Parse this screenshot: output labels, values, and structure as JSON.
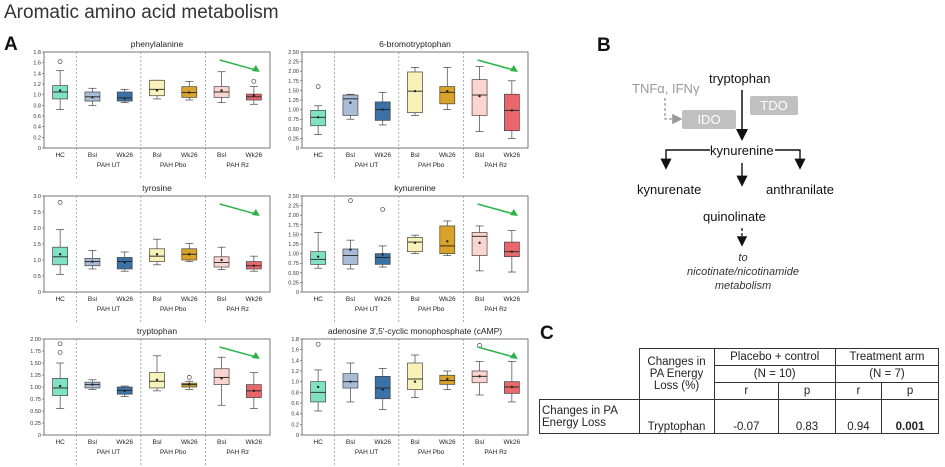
{
  "title": "Aromatic amino acid metabolism",
  "panels": {
    "a": "A",
    "b": "B",
    "c": "C"
  },
  "groups": [
    "PAH UT",
    "PAH Pbo",
    "PAH Rz"
  ],
  "chart_data": [
    {
      "type": "box",
      "title": "phenylalanine",
      "ylim": [
        0,
        1.8
      ],
      "yticks": [
        "0",
        "0.2",
        "0.4",
        "0.6",
        "0.8",
        "1.0",
        "1.2",
        "1.4",
        "1.6",
        "1.8"
      ],
      "categories": [
        "HC",
        "Bsl",
        "Wk26",
        "Bsl",
        "Wk26",
        "Bsl",
        "Wk26"
      ],
      "boxes": [
        {
          "min": 0.72,
          "q1": 0.92,
          "median": 1.05,
          "q3": 1.17,
          "max": 1.45,
          "mean": 1.08,
          "outliers": [
            1.62
          ]
        },
        {
          "min": 0.8,
          "q1": 0.88,
          "median": 0.96,
          "q3": 1.05,
          "max": 1.12,
          "mean": 0.95,
          "outliers": []
        },
        {
          "min": 0.85,
          "q1": 0.88,
          "median": 0.94,
          "q3": 1.05,
          "max": 1.1,
          "mean": 0.93,
          "outliers": []
        },
        {
          "min": 0.92,
          "q1": 0.98,
          "median": 1.1,
          "q3": 1.27,
          "max": 1.27,
          "mean": 1.08,
          "outliers": []
        },
        {
          "min": 0.9,
          "q1": 0.95,
          "median": 1.04,
          "q3": 1.15,
          "max": 1.25,
          "mean": 1.04,
          "outliers": []
        },
        {
          "min": 0.85,
          "q1": 0.95,
          "median": 1.05,
          "q3": 1.15,
          "max": 1.43,
          "mean": 1.08,
          "outliers": []
        },
        {
          "min": 0.82,
          "q1": 0.9,
          "median": 0.96,
          "q3": 1.01,
          "max": 1.15,
          "mean": 0.98,
          "outliers": [
            1.25
          ]
        }
      ]
    },
    {
      "type": "box",
      "title": "6-bromotryptophan",
      "ylim": [
        0,
        2.5
      ],
      "yticks": [
        "0",
        "0.25",
        "0.50",
        "0.75",
        "1.00",
        "1.25",
        "1.50",
        "1.75",
        "2.00",
        "2.25",
        "2.50"
      ],
      "categories": [
        "HC",
        "Bsl",
        "Wk26",
        "Bsl",
        "Wk26",
        "Bsl",
        "Wk26"
      ],
      "boxes": [
        {
          "min": 0.35,
          "q1": 0.58,
          "median": 0.8,
          "q3": 0.98,
          "max": 1.1,
          "mean": 0.8,
          "outliers": [
            1.6
          ]
        },
        {
          "min": 0.75,
          "q1": 0.85,
          "median": 1.28,
          "q3": 1.38,
          "max": 1.4,
          "mean": 1.18,
          "outliers": []
        },
        {
          "min": 0.6,
          "q1": 0.72,
          "median": 1.0,
          "q3": 1.2,
          "max": 1.45,
          "mean": 1.0,
          "outliers": []
        },
        {
          "min": 0.85,
          "q1": 0.92,
          "median": 1.48,
          "q3": 1.98,
          "max": 2.1,
          "mean": 1.48,
          "outliers": []
        },
        {
          "min": 1.0,
          "q1": 1.15,
          "median": 1.45,
          "q3": 1.6,
          "max": 2.1,
          "mean": 1.48,
          "outliers": []
        },
        {
          "min": 0.43,
          "q1": 0.85,
          "median": 1.38,
          "q3": 1.78,
          "max": 2.12,
          "mean": 1.35,
          "outliers": []
        },
        {
          "min": 0.25,
          "q1": 0.45,
          "median": 0.98,
          "q3": 1.4,
          "max": 1.75,
          "mean": 0.98,
          "outliers": []
        }
      ]
    },
    {
      "type": "box",
      "title": "tyrosine",
      "ylim": [
        0,
        3.0
      ],
      "yticks": [
        "0",
        "0.5",
        "1.0",
        "1.5",
        "2.0",
        "2.5",
        "3.0"
      ],
      "categories": [
        "HC",
        "Bsl",
        "Wk26",
        "Bsl",
        "Wk26",
        "Bsl",
        "Wk26"
      ],
      "boxes": [
        {
          "min": 0.55,
          "q1": 0.85,
          "median": 1.1,
          "q3": 1.4,
          "max": 1.95,
          "mean": 1.18,
          "outliers": [
            2.8
          ]
        },
        {
          "min": 0.72,
          "q1": 0.82,
          "median": 0.95,
          "q3": 1.05,
          "max": 1.3,
          "mean": 0.95,
          "outliers": []
        },
        {
          "min": 0.65,
          "q1": 0.72,
          "median": 0.95,
          "q3": 1.08,
          "max": 1.25,
          "mean": 0.92,
          "outliers": []
        },
        {
          "min": 0.85,
          "q1": 0.95,
          "median": 1.12,
          "q3": 1.35,
          "max": 1.65,
          "mean": 1.18,
          "outliers": []
        },
        {
          "min": 0.95,
          "q1": 1.0,
          "median": 1.18,
          "q3": 1.35,
          "max": 1.52,
          "mean": 1.18,
          "outliers": []
        },
        {
          "min": 0.7,
          "q1": 0.78,
          "median": 0.92,
          "q3": 1.1,
          "max": 1.4,
          "mean": 1.0,
          "outliers": []
        },
        {
          "min": 0.65,
          "q1": 0.72,
          "median": 0.82,
          "q3": 0.95,
          "max": 1.12,
          "mean": 0.82,
          "outliers": []
        }
      ]
    },
    {
      "type": "box",
      "title": "kynurenine",
      "ylim": [
        0,
        2.5
      ],
      "yticks": [
        "0",
        "0.25",
        "0.50",
        "0.75",
        "1.00",
        "1.25",
        "1.50",
        "1.75",
        "2.00",
        "2.25",
        "2.50"
      ],
      "categories": [
        "HC",
        "Bsl",
        "Wk26",
        "Bsl",
        "Wk26",
        "Bsl",
        "Wk26"
      ],
      "boxes": [
        {
          "min": 0.62,
          "q1": 0.72,
          "median": 0.85,
          "q3": 1.05,
          "max": 1.55,
          "mean": 0.92,
          "outliers": []
        },
        {
          "min": 0.6,
          "q1": 0.72,
          "median": 0.95,
          "q3": 1.12,
          "max": 1.35,
          "mean": 1.1,
          "outliers": [
            2.38
          ]
        },
        {
          "min": 0.65,
          "q1": 0.72,
          "median": 0.9,
          "q3": 1.0,
          "max": 1.2,
          "mean": 0.98,
          "outliers": [
            2.15
          ]
        },
        {
          "min": 1.0,
          "q1": 1.05,
          "median": 1.3,
          "q3": 1.42,
          "max": 1.48,
          "mean": 1.28,
          "outliers": []
        },
        {
          "min": 0.95,
          "q1": 1.0,
          "median": 1.2,
          "q3": 1.72,
          "max": 1.85,
          "mean": 1.32,
          "outliers": []
        },
        {
          "min": 0.55,
          "q1": 0.95,
          "median": 1.45,
          "q3": 1.55,
          "max": 1.72,
          "mean": 1.28,
          "outliers": []
        },
        {
          "min": 0.52,
          "q1": 0.92,
          "median": 1.05,
          "q3": 1.3,
          "max": 1.6,
          "mean": 1.05,
          "outliers": []
        }
      ]
    },
    {
      "type": "box",
      "title": "tryptophan",
      "ylim": [
        0,
        2.0
      ],
      "yticks": [
        "0",
        "0.25",
        "0.50",
        "0.75",
        "1.00",
        "1.25",
        "1.50",
        "1.75",
        "2.00"
      ],
      "categories": [
        "HC",
        "Bsl",
        "Wk26",
        "Bsl",
        "Wk26",
        "Bsl",
        "Wk26"
      ],
      "boxes": [
        {
          "min": 0.55,
          "q1": 0.82,
          "median": 0.98,
          "q3": 1.18,
          "max": 1.5,
          "mean": 1.02,
          "outliers": [
            1.72,
            1.9
          ]
        },
        {
          "min": 0.95,
          "q1": 0.98,
          "median": 1.05,
          "q3": 1.1,
          "max": 1.15,
          "mean": 1.05,
          "outliers": []
        },
        {
          "min": 0.8,
          "q1": 0.85,
          "median": 0.93,
          "q3": 1.0,
          "max": 1.02,
          "mean": 0.92,
          "outliers": []
        },
        {
          "min": 0.92,
          "q1": 0.98,
          "median": 1.12,
          "q3": 1.3,
          "max": 1.65,
          "mean": 1.15,
          "outliers": []
        },
        {
          "min": 0.95,
          "q1": 1.0,
          "median": 1.05,
          "q3": 1.08,
          "max": 1.12,
          "mean": 1.05,
          "outliers": [
            1.2
          ]
        },
        {
          "min": 0.62,
          "q1": 1.05,
          "median": 1.2,
          "q3": 1.38,
          "max": 1.62,
          "mean": 1.18,
          "outliers": []
        },
        {
          "min": 0.55,
          "q1": 0.78,
          "median": 0.92,
          "q3": 1.05,
          "max": 1.3,
          "mean": 0.92,
          "outliers": []
        }
      ]
    },
    {
      "type": "box",
      "title": "adenosine 3',5'-cyclic monophosphate (cAMP)",
      "ylim": [
        0,
        1.8
      ],
      "yticks": [
        "0",
        "0.2",
        "0.4",
        "0.6",
        "0.8",
        "1.0",
        "1.2",
        "1.4",
        "1.6",
        "1.8"
      ],
      "categories": [
        "HC",
        "Bsl",
        "Wk26",
        "Bsl",
        "Wk26",
        "Bsl",
        "Wk26"
      ],
      "boxes": [
        {
          "min": 0.45,
          "q1": 0.62,
          "median": 0.8,
          "q3": 1.0,
          "max": 1.22,
          "mean": 0.9,
          "outliers": [
            1.7
          ]
        },
        {
          "min": 0.62,
          "q1": 0.88,
          "median": 1.0,
          "q3": 1.15,
          "max": 1.35,
          "mean": 1.0,
          "outliers": []
        },
        {
          "min": 0.48,
          "q1": 0.68,
          "median": 0.88,
          "q3": 1.1,
          "max": 1.25,
          "mean": 0.85,
          "outliers": []
        },
        {
          "min": 0.7,
          "q1": 0.85,
          "median": 1.05,
          "q3": 1.35,
          "max": 1.5,
          "mean": 1.0,
          "outliers": []
        },
        {
          "min": 0.85,
          "q1": 0.95,
          "median": 1.02,
          "q3": 1.12,
          "max": 1.2,
          "mean": 1.05,
          "outliers": []
        },
        {
          "min": 0.75,
          "q1": 0.98,
          "median": 1.1,
          "q3": 1.2,
          "max": 1.38,
          "mean": 1.1,
          "outliers": [
            1.68
          ]
        },
        {
          "min": 0.62,
          "q1": 0.78,
          "median": 0.9,
          "q3": 1.0,
          "max": 1.38,
          "mean": 0.9,
          "outliers": []
        }
      ]
    }
  ],
  "pathway": {
    "tryptophan": "tryptophan",
    "cytokines": "TNFα, IFNγ",
    "ido": "IDO",
    "tdo": "TDO",
    "kynurenine": "kynurenine",
    "kynurenate": "kynurenate",
    "anthranilate": "anthranilate",
    "quinolinate": "quinolinate",
    "final": [
      "to",
      "nicotinate/nicotinamide",
      "metabolism"
    ]
  },
  "table": {
    "col_header": [
      "Changes in",
      "PA Energy",
      "Loss (%)"
    ],
    "groups": [
      {
        "name": "Placebo + control",
        "n": "(N = 10)"
      },
      {
        "name": "Treatment arm",
        "n": "(N = 7)"
      }
    ],
    "sub": [
      "r",
      "p",
      "r",
      "p"
    ],
    "row_label": [
      "Changes in PA",
      "Energy Loss"
    ],
    "row_metabolite": "Tryptophan",
    "values": [
      "-0.07",
      "0.83",
      "0.94",
      "0.001"
    ]
  },
  "colors": {
    "hc": "#7fe3c3",
    "ut_bsl": "#a8bcd8",
    "ut_wk": "#3a72a8",
    "pbo_bsl": "#f8f2b8",
    "pbo_wk": "#d9a32a",
    "rz_bsl": "#fbd4d0",
    "rz_wk": "#e8676a",
    "arrow": "#2bb34a"
  }
}
